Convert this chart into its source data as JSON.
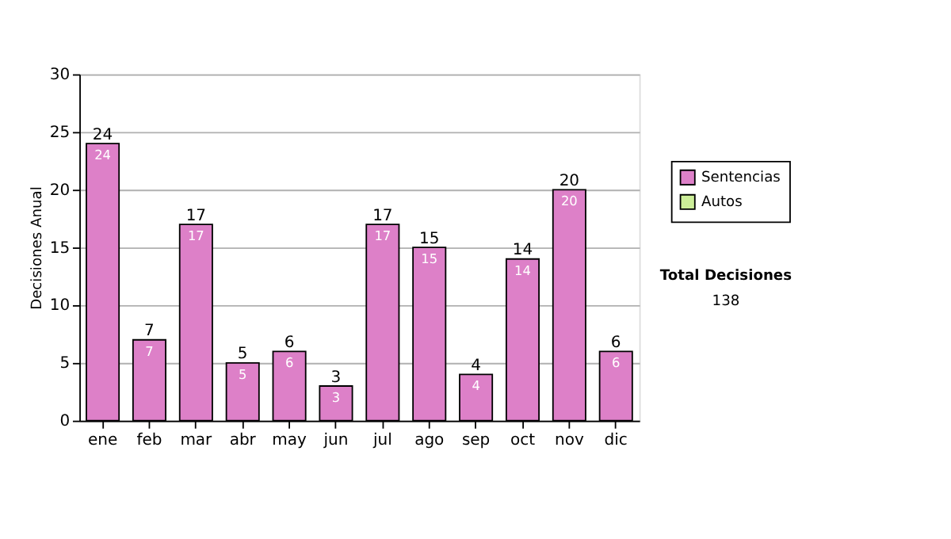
{
  "chart_data": {
    "type": "bar",
    "ylabel": "Decisiones Anual",
    "categories": [
      "ene",
      "feb",
      "mar",
      "abr",
      "may",
      "jun",
      "jul",
      "ago",
      "sep",
      "oct",
      "nov",
      "dic"
    ],
    "series": [
      {
        "name": "Sentencias",
        "color": "#dd80c8",
        "values": [
          24,
          7,
          17,
          5,
          6,
          3,
          17,
          15,
          4,
          14,
          20,
          6
        ]
      },
      {
        "name": "Autos",
        "color": "#ccee99",
        "values": [
          null,
          null,
          null,
          null,
          null,
          null,
          null,
          null,
          null,
          null,
          null,
          null
        ]
      }
    ],
    "data_labels": true,
    "totals": [
      "24",
      "7",
      "17",
      "5",
      "6",
      "3",
      "17",
      "15",
      "4",
      "14",
      "20",
      "6"
    ],
    "ylim": [
      0,
      30
    ],
    "yticks": [
      0,
      5,
      10,
      15,
      20,
      25,
      30
    ],
    "grid": "y",
    "legend": "right",
    "annotations": [
      "Total Decisiones",
      "138"
    ]
  }
}
